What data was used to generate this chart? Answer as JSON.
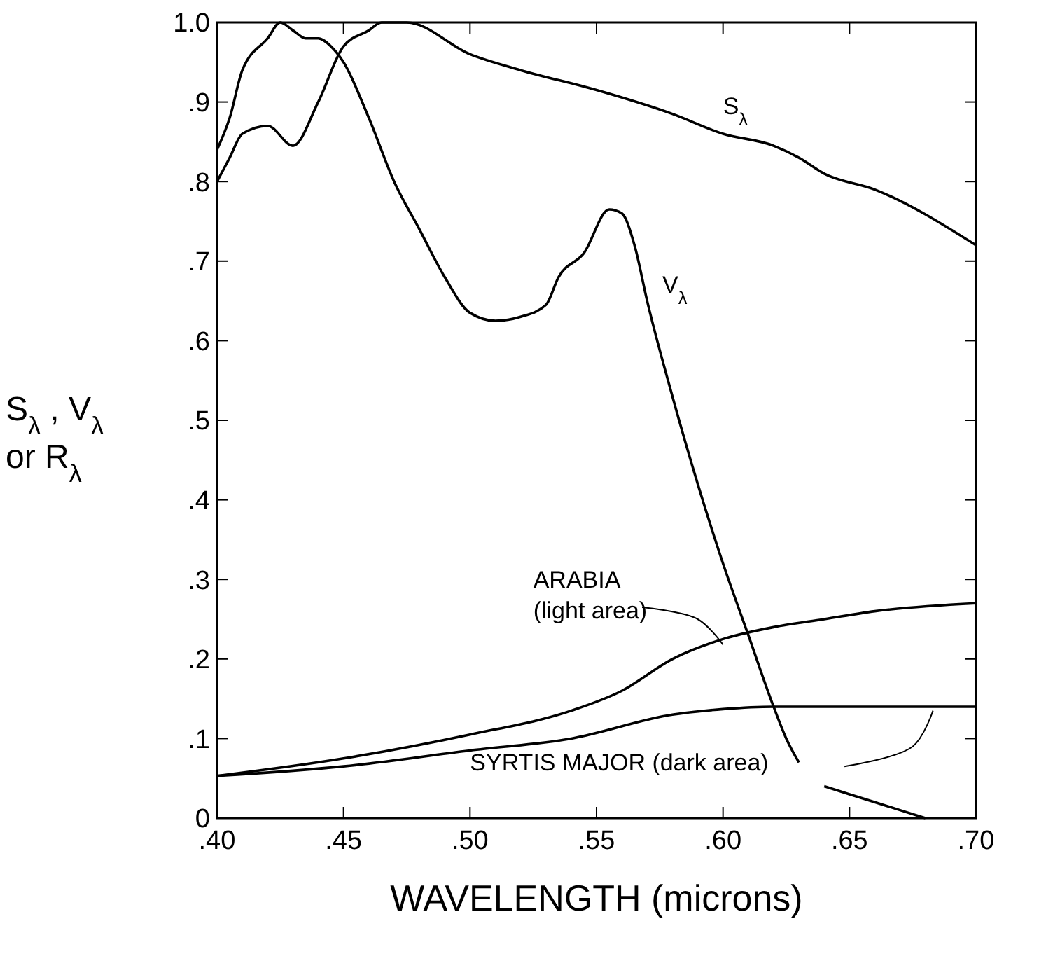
{
  "chart_data": {
    "type": "line",
    "xlabel": "WAVELENGTH (microns)",
    "ylabel": "S$_{λ}$ , V$_{λ}$ or R$_{λ}$",
    "xlim": [
      0.4,
      0.7
    ],
    "ylim": [
      0,
      1.0
    ],
    "xticks": [
      {
        "value": 0.4,
        "label": ".40"
      },
      {
        "value": 0.45,
        "label": ".45"
      },
      {
        "value": 0.5,
        "label": ".50"
      },
      {
        "value": 0.55,
        "label": ".55"
      },
      {
        "value": 0.6,
        "label": ".60"
      },
      {
        "value": 0.65,
        "label": ".65"
      },
      {
        "value": 0.7,
        "label": ".70"
      }
    ],
    "yticks": [
      0,
      {
        "value": 0.1,
        "label": ".1"
      },
      {
        "value": 0.2,
        "label": ".2"
      },
      {
        "value": 0.3,
        "label": ".3"
      },
      {
        "value": 0.4,
        "label": ".4"
      },
      {
        "value": 0.5,
        "label": ".5"
      },
      {
        "value": 0.6,
        "label": ".6"
      },
      {
        "value": 0.7,
        "label": ".7"
      },
      {
        "value": 0.8,
        "label": ".8"
      },
      {
        "value": 0.9,
        "label": ".9"
      },
      {
        "value": 1.0,
        "label": "1.0"
      }
    ],
    "grid": false,
    "marker": "none",
    "line_style": "solid",
    "series": [
      {
        "name": "S$_{λ}$",
        "color": "#000000",
        "x": [
          0.4,
          0.405,
          0.41,
          0.42,
          0.43,
          0.44,
          0.45,
          0.46,
          0.465,
          0.475,
          0.5,
          0.52,
          0.55,
          0.58,
          0.6,
          0.62,
          0.63,
          0.64,
          0.66,
          0.7
        ],
        "values": [
          0.8,
          0.83,
          0.86,
          0.87,
          0.845,
          0.9,
          0.97,
          0.99,
          1.0,
          1.0,
          0.96,
          0.94,
          0.915,
          0.885,
          0.86,
          0.845,
          0.83,
          0.81,
          0.79,
          0.72
        ]
      },
      {
        "name": "V$_{λ}$",
        "color": "#000000",
        "x": [
          0.4,
          0.405,
          0.41,
          0.42,
          0.425,
          0.43,
          0.435,
          0.44,
          0.445,
          0.45,
          0.46,
          0.47,
          0.48,
          0.49,
          0.5,
          0.51,
          0.52,
          0.53,
          0.535,
          0.545,
          0.555,
          0.56,
          0.565,
          0.57,
          0.58,
          0.59,
          0.6,
          0.61,
          0.62,
          0.625,
          0.63,
          0.635,
          0.64,
          0.65,
          0.66,
          0.67,
          0.68
        ],
        "values": [
          0.84,
          0.88,
          0.94,
          0.98,
          1.0,
          0.99,
          0.98,
          0.98,
          0.97,
          0.95,
          0.88,
          0.8,
          0.74,
          0.68,
          0.635,
          0.625,
          0.63,
          0.645,
          0.68,
          0.71,
          0.765,
          0.76,
          0.72,
          0.65,
          0.53,
          0.42,
          0.32,
          0.23,
          0.14,
          0.1,
          0.07,
          null,
          0.04,
          0.03,
          0.02,
          0.01,
          0
        ]
      },
      {
        "name": "ARABIA (light area)",
        "color": "#000000",
        "x": [
          0.4,
          0.45,
          0.5,
          0.54,
          0.56,
          0.58,
          0.6,
          0.62,
          0.64,
          0.66,
          0.7
        ],
        "values": [
          0.053,
          0.075,
          0.105,
          0.135,
          0.16,
          0.2,
          0.225,
          0.24,
          0.25,
          0.26,
          0.27
        ]
      },
      {
        "name": "SYRTIS MAJOR (dark area)",
        "color": "#000000",
        "x": [
          0.4,
          0.45,
          0.5,
          0.54,
          0.58,
          0.6,
          0.62,
          0.7
        ],
        "values": [
          0.053,
          0.065,
          0.085,
          0.1,
          0.13,
          0.137,
          0.14,
          0.14
        ]
      }
    ]
  }
}
